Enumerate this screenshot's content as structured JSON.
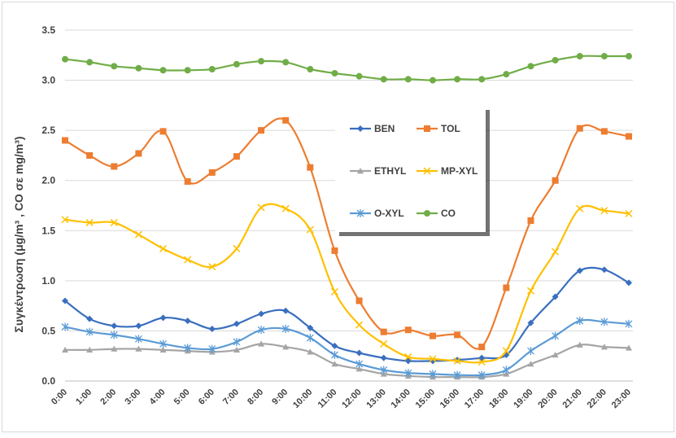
{
  "chart_data": {
    "type": "line",
    "xlabel": "",
    "ylabel": "Συγκέντρωση  (μg/m³ , CO σε mg/m³)",
    "ylim": [
      0,
      3.5
    ],
    "yticks": [
      "0.0",
      "0.5",
      "1.0",
      "1.5",
      "2.0",
      "2.5",
      "3.0",
      "3.5"
    ],
    "grid": "horizontal",
    "legend_position": "center",
    "categories": [
      "0:00",
      "1:00",
      "2:00",
      "3:00",
      "4:00",
      "5:00",
      "6:00",
      "7:00",
      "8:00",
      "9:00",
      "10:00",
      "11:00",
      "12:00",
      "13:00",
      "14:00",
      "15:00",
      "16:00",
      "17:00",
      "18:00",
      "19:00",
      "20:00",
      "21:00",
      "22:00",
      "23:00"
    ],
    "series": [
      {
        "name": "BEN",
        "color": "#3a6fbf",
        "marker": "diamond",
        "values": [
          0.8,
          0.62,
          0.55,
          0.55,
          0.63,
          0.6,
          0.52,
          0.57,
          0.67,
          0.7,
          0.53,
          0.35,
          0.28,
          0.23,
          0.2,
          0.2,
          0.21,
          0.23,
          0.26,
          0.58,
          0.84,
          1.1,
          1.11,
          0.98
        ]
      },
      {
        "name": "TOL",
        "color": "#ed7d31",
        "marker": "square",
        "values": [
          2.4,
          2.25,
          2.14,
          2.27,
          2.49,
          1.99,
          2.08,
          2.24,
          2.5,
          2.6,
          2.13,
          1.3,
          0.8,
          0.49,
          0.51,
          0.45,
          0.46,
          0.34,
          0.93,
          1.6,
          2.0,
          2.52,
          2.49,
          2.44
        ]
      },
      {
        "name": "ETHYL",
        "color": "#a5a5a5",
        "marker": "triangle",
        "values": [
          0.31,
          0.31,
          0.32,
          0.32,
          0.31,
          0.3,
          0.29,
          0.31,
          0.37,
          0.34,
          0.29,
          0.17,
          0.12,
          0.07,
          0.05,
          0.04,
          0.04,
          0.04,
          0.07,
          0.17,
          0.26,
          0.36,
          0.34,
          0.33
        ]
      },
      {
        "name": "MP-XYL",
        "color": "#ffc000",
        "marker": "x",
        "values": [
          1.61,
          1.58,
          1.58,
          1.46,
          1.32,
          1.21,
          1.14,
          1.32,
          1.73,
          1.72,
          1.51,
          0.89,
          0.56,
          0.37,
          0.24,
          0.22,
          0.2,
          0.19,
          0.3,
          0.9,
          1.29,
          1.72,
          1.7,
          1.67
        ]
      },
      {
        "name": "O-XYL",
        "color": "#5b9bd5",
        "marker": "asterisk",
        "values": [
          0.54,
          0.49,
          0.46,
          0.42,
          0.37,
          0.33,
          0.32,
          0.39,
          0.51,
          0.52,
          0.43,
          0.26,
          0.17,
          0.11,
          0.08,
          0.07,
          0.06,
          0.06,
          0.11,
          0.3,
          0.45,
          0.6,
          0.59,
          0.57
        ]
      },
      {
        "name": "CO",
        "color": "#70ad47",
        "marker": "circle",
        "values": [
          3.21,
          3.18,
          3.14,
          3.12,
          3.1,
          3.1,
          3.11,
          3.16,
          3.19,
          3.18,
          3.11,
          3.07,
          3.04,
          3.01,
          3.01,
          3.0,
          3.01,
          3.01,
          3.06,
          3.14,
          3.2,
          3.24,
          3.24,
          3.24
        ]
      }
    ]
  }
}
